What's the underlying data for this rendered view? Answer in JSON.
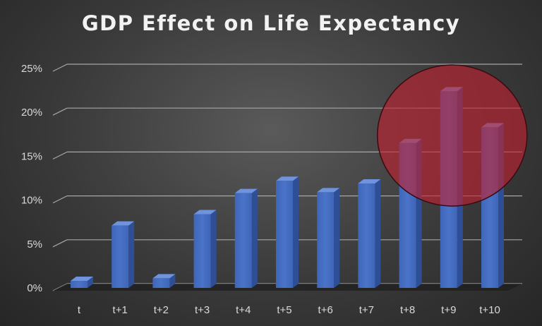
{
  "chart_data": {
    "type": "bar",
    "title": "GDP Effect on Life Expectancy",
    "xlabel": "",
    "ylabel": "",
    "categories": [
      "t",
      "t+1",
      "t+2",
      "t+3",
      "t+4",
      "t+5",
      "t+6",
      "t+7",
      "t+8",
      "t+9",
      "t+10"
    ],
    "values": [
      0.8,
      7.1,
      1.1,
      8.4,
      10.8,
      12.2,
      10.9,
      11.9,
      16.5,
      22.4,
      18.3
    ],
    "yticks": [
      "0%",
      "5%",
      "10%",
      "15%",
      "20%",
      "25%"
    ],
    "ylim": [
      0,
      25
    ],
    "grid": true,
    "highlight": {
      "description": "red circle",
      "categories": [
        "t+8",
        "t+9",
        "t+10"
      ]
    },
    "colors": {
      "bar_front": "#4a74c9",
      "bar_side": "#2e4f96",
      "bar_top": "#6f93dc",
      "highlight_fill": "#c0202e",
      "grid": "#a6a6a6",
      "text": "#d9d9d9"
    }
  }
}
